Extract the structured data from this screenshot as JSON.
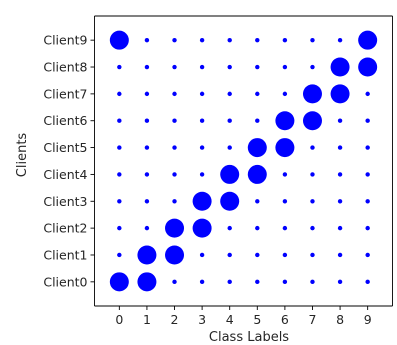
{
  "chart_data": {
    "type": "scatter",
    "xlabel": "Class Labels",
    "ylabel": "Clients",
    "x_ticks": [
      "0",
      "1",
      "2",
      "3",
      "4",
      "5",
      "6",
      "7",
      "8",
      "9"
    ],
    "y_ticks": [
      "Client0",
      "Client1",
      "Client2",
      "Client3",
      "Client4",
      "Client5",
      "Client6",
      "Client7",
      "Client8",
      "Client9"
    ],
    "xlim": [
      -0.9,
      9.9
    ],
    "ylim": [
      -0.9,
      9.9
    ],
    "grid": false,
    "marker_color": "#0000ff",
    "marker_size_levels": {
      "large": 1,
      "small": 0
    },
    "points": [
      [
        0,
        0,
        1
      ],
      [
        1,
        0,
        1
      ],
      [
        2,
        0,
        0
      ],
      [
        3,
        0,
        0
      ],
      [
        4,
        0,
        0
      ],
      [
        5,
        0,
        0
      ],
      [
        6,
        0,
        0
      ],
      [
        7,
        0,
        0
      ],
      [
        8,
        0,
        0
      ],
      [
        9,
        0,
        0
      ],
      [
        0,
        1,
        0
      ],
      [
        1,
        1,
        1
      ],
      [
        2,
        1,
        1
      ],
      [
        3,
        1,
        0
      ],
      [
        4,
        1,
        0
      ],
      [
        5,
        1,
        0
      ],
      [
        6,
        1,
        0
      ],
      [
        7,
        1,
        0
      ],
      [
        8,
        1,
        0
      ],
      [
        9,
        1,
        0
      ],
      [
        0,
        2,
        0
      ],
      [
        1,
        2,
        0
      ],
      [
        2,
        2,
        1
      ],
      [
        3,
        2,
        1
      ],
      [
        4,
        2,
        0
      ],
      [
        5,
        2,
        0
      ],
      [
        6,
        2,
        0
      ],
      [
        7,
        2,
        0
      ],
      [
        8,
        2,
        0
      ],
      [
        9,
        2,
        0
      ],
      [
        0,
        3,
        0
      ],
      [
        1,
        3,
        0
      ],
      [
        2,
        3,
        0
      ],
      [
        3,
        3,
        1
      ],
      [
        4,
        3,
        1
      ],
      [
        5,
        3,
        0
      ],
      [
        6,
        3,
        0
      ],
      [
        7,
        3,
        0
      ],
      [
        8,
        3,
        0
      ],
      [
        9,
        3,
        0
      ],
      [
        0,
        4,
        0
      ],
      [
        1,
        4,
        0
      ],
      [
        2,
        4,
        0
      ],
      [
        3,
        4,
        0
      ],
      [
        4,
        4,
        1
      ],
      [
        5,
        4,
        1
      ],
      [
        6,
        4,
        0
      ],
      [
        7,
        4,
        0
      ],
      [
        8,
        4,
        0
      ],
      [
        9,
        4,
        0
      ],
      [
        0,
        5,
        0
      ],
      [
        1,
        5,
        0
      ],
      [
        2,
        5,
        0
      ],
      [
        3,
        5,
        0
      ],
      [
        4,
        5,
        0
      ],
      [
        5,
        5,
        1
      ],
      [
        6,
        5,
        1
      ],
      [
        7,
        5,
        0
      ],
      [
        8,
        5,
        0
      ],
      [
        9,
        5,
        0
      ],
      [
        0,
        6,
        0
      ],
      [
        1,
        6,
        0
      ],
      [
        2,
        6,
        0
      ],
      [
        3,
        6,
        0
      ],
      [
        4,
        6,
        0
      ],
      [
        5,
        6,
        0
      ],
      [
        6,
        6,
        1
      ],
      [
        7,
        6,
        1
      ],
      [
        8,
        6,
        0
      ],
      [
        9,
        6,
        0
      ],
      [
        0,
        7,
        0
      ],
      [
        1,
        7,
        0
      ],
      [
        2,
        7,
        0
      ],
      [
        3,
        7,
        0
      ],
      [
        4,
        7,
        0
      ],
      [
        5,
        7,
        0
      ],
      [
        6,
        7,
        0
      ],
      [
        7,
        7,
        1
      ],
      [
        8,
        7,
        1
      ],
      [
        9,
        7,
        0
      ],
      [
        0,
        8,
        0
      ],
      [
        1,
        8,
        0
      ],
      [
        2,
        8,
        0
      ],
      [
        3,
        8,
        0
      ],
      [
        4,
        8,
        0
      ],
      [
        5,
        8,
        0
      ],
      [
        6,
        8,
        0
      ],
      [
        7,
        8,
        0
      ],
      [
        8,
        8,
        1
      ],
      [
        9,
        8,
        1
      ],
      [
        0,
        9,
        1
      ],
      [
        1,
        9,
        0
      ],
      [
        2,
        9,
        0
      ],
      [
        3,
        9,
        0
      ],
      [
        4,
        9,
        0
      ],
      [
        5,
        9,
        0
      ],
      [
        6,
        9,
        0
      ],
      [
        7,
        9,
        0
      ],
      [
        8,
        9,
        0
      ],
      [
        9,
        9,
        1
      ]
    ]
  }
}
